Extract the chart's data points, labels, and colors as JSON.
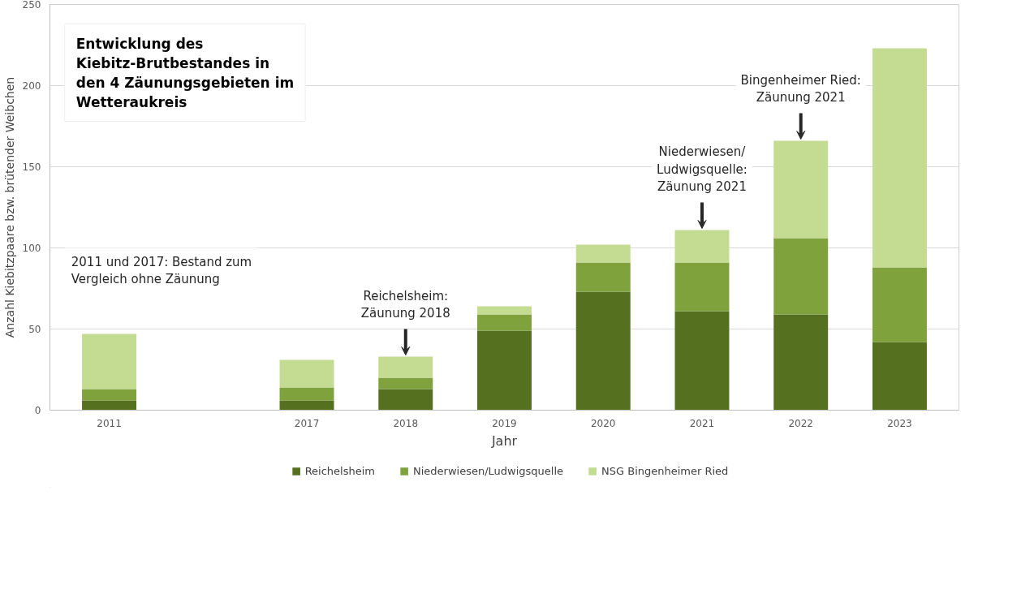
{
  "chart_data": {
    "type": "bar",
    "stacked": true,
    "title": "Entwicklung des Kiebitz-Brutbestandes in den 4 Zäunungsgebieten im Wetteraukreis",
    "xlabel": "Jahr",
    "ylabel": "Anzahl Kiebitzpaare bzw. brütender Weibchen",
    "categories": [
      "2011",
      null,
      "2017",
      "2018",
      "2019",
      "2020",
      "2021",
      "2022",
      "2023"
    ],
    "series": [
      {
        "name": "Reichelsheim",
        "color": "#55701f",
        "values": [
          6,
          null,
          6,
          13,
          49,
          73,
          61,
          59,
          42
        ]
      },
      {
        "name": "Niederwiesen/Ludwigsquelle",
        "color": "#7fa23c",
        "values": [
          7,
          null,
          8,
          7,
          10,
          18,
          30,
          47,
          46
        ]
      },
      {
        "name": "NSG Bingenheimer Ried",
        "color": "#c3dc92",
        "values": [
          34,
          null,
          17,
          13,
          5,
          11,
          20,
          60,
          135
        ]
      }
    ],
    "ylim": [
      0,
      250
    ],
    "yticks": [
      0,
      50,
      100,
      150,
      200,
      250
    ],
    "grid": "y",
    "legend": "bottom",
    "annotations": [
      "2011 und 2017: Bestand zum Vergleich ohne Zäunung",
      {
        "text": "Reichelsheim: Zäunung 2018",
        "x": "2018",
        "y": 33
      },
      {
        "text": "Niederwiesen/Ludwigsquelle: Zäunung 2021",
        "x": "2021",
        "y": 111
      },
      {
        "text": "Bingenheimer Ried: Zäunung 2021",
        "x": "2022",
        "y": 166
      }
    ]
  }
}
